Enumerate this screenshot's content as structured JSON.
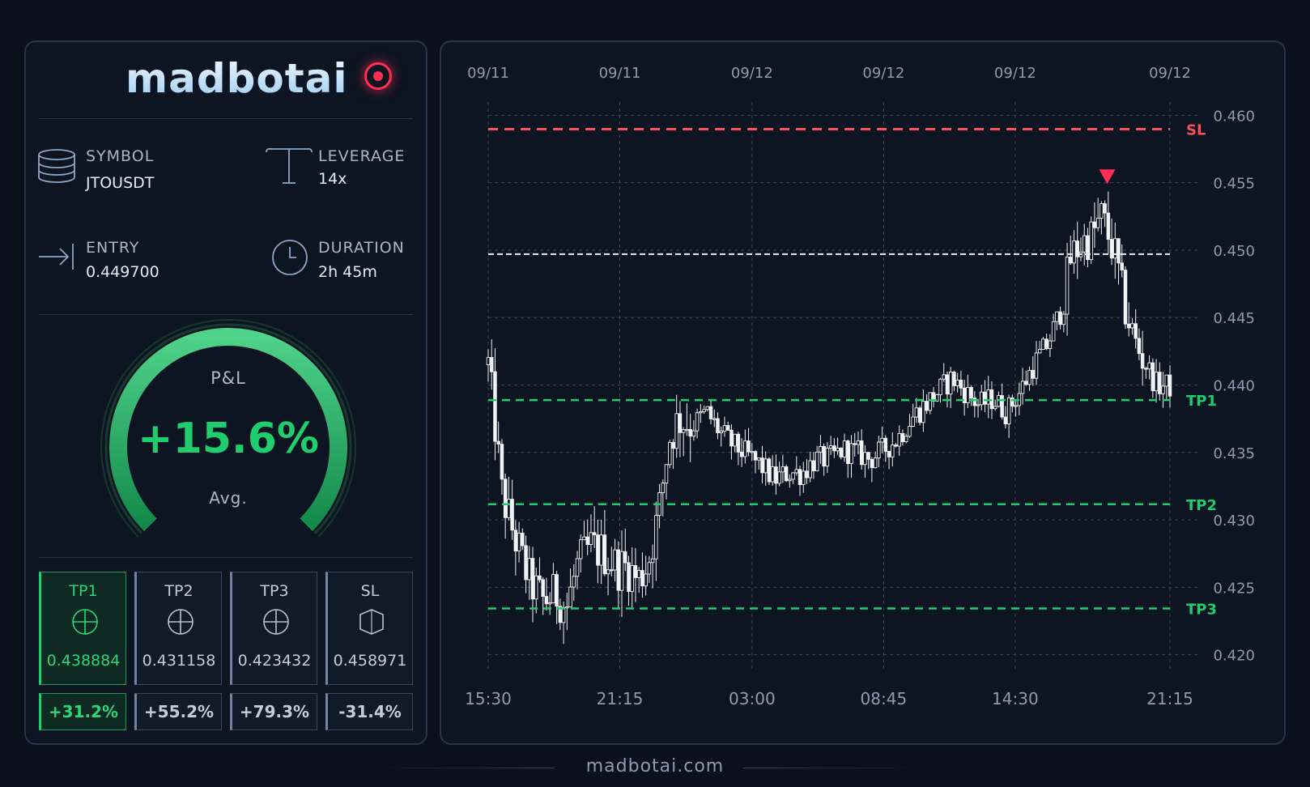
{
  "brand": {
    "logo": "madbotai",
    "website": "madbotai.com"
  },
  "trade": {
    "symbol_label": "SYMBOL",
    "symbol": "JTOUSDT",
    "leverage_label": "LEVERAGE",
    "leverage": "14x",
    "entry_label": "ENTRY",
    "entry": "0.449700",
    "duration_label": "DURATION",
    "duration": "2h 45m"
  },
  "pnl": {
    "title": "P&L",
    "value": "+15.6%",
    "subtitle": "Avg.",
    "fill_fraction": 1.0
  },
  "targets": [
    {
      "name": "TP1",
      "price": "0.438884",
      "pct": "+31.2%",
      "hit": true,
      "icon": "crosshair-icon"
    },
    {
      "name": "TP2",
      "price": "0.431158",
      "pct": "+55.2%",
      "hit": false,
      "icon": "crosshair-icon"
    },
    {
      "name": "TP3",
      "price": "0.423432",
      "pct": "+79.3%",
      "hit": false,
      "icon": "crosshair-icon"
    },
    {
      "name": "SL",
      "price": "0.458971",
      "pct": "-31.4%",
      "hit": false,
      "icon": "shield-icon"
    }
  ],
  "colors": {
    "accent_green": "#1fcd6e",
    "stop_red": "#ff4d5a",
    "entry_line": "#e8ecf2",
    "candle": "#f0f2f5",
    "grid": "#3a4658",
    "axis_text": "#8e9ab0"
  },
  "chart_data": {
    "type": "candlestick",
    "title": "",
    "ylim": [
      0.4195,
      0.4605
    ],
    "yticks": [
      0.42,
      0.425,
      0.43,
      0.435,
      0.44,
      0.445,
      0.45,
      0.455,
      0.46
    ],
    "ytick_labels": [
      "0.420",
      "0.425",
      "0.430",
      "0.435",
      "0.440",
      "0.445",
      "0.450",
      "0.455",
      "0.460"
    ],
    "x_top_labels": [
      "09/11",
      "09/11",
      "09/12",
      "09/12",
      "09/12",
      "09/12"
    ],
    "x_bottom_labels": [
      "15:30",
      "21:15",
      "03:00",
      "08:45",
      "14:30",
      "21:15"
    ],
    "x_tick_fractions": [
      0.0,
      0.193,
      0.387,
      0.58,
      0.773,
      1.0
    ],
    "grid": true,
    "levels": [
      {
        "name": "SL",
        "price": 0.458971,
        "style": "stop"
      },
      {
        "name": "ENTRY",
        "price": 0.4497,
        "style": "entry"
      },
      {
        "name": "TP1",
        "price": 0.438884,
        "style": "target"
      },
      {
        "name": "TP2",
        "price": 0.431158,
        "style": "target"
      },
      {
        "name": "TP3",
        "price": 0.423432,
        "style": "target"
      }
    ],
    "signal_marker": {
      "type": "short-entry",
      "price_at": 0.4555,
      "fraction": 0.908
    },
    "close_path": [
      [
        0.0,
        0.4415
      ],
      [
        0.01,
        0.437
      ],
      [
        0.02,
        0.432
      ],
      [
        0.04,
        0.4285
      ],
      [
        0.06,
        0.4255
      ],
      [
        0.08,
        0.424
      ],
      [
        0.1,
        0.4245
      ],
      [
        0.115,
        0.4235
      ],
      [
        0.13,
        0.4265
      ],
      [
        0.15,
        0.428
      ],
      [
        0.17,
        0.4275
      ],
      [
        0.19,
        0.4265
      ],
      [
        0.205,
        0.4265
      ],
      [
        0.22,
        0.4255
      ],
      [
        0.235,
        0.427
      ],
      [
        0.25,
        0.4305
      ],
      [
        0.265,
        0.436
      ],
      [
        0.28,
        0.4375
      ],
      [
        0.3,
        0.437
      ],
      [
        0.32,
        0.438
      ],
      [
        0.34,
        0.4365
      ],
      [
        0.36,
        0.4355
      ],
      [
        0.38,
        0.4348
      ],
      [
        0.4,
        0.434
      ],
      [
        0.42,
        0.433
      ],
      [
        0.44,
        0.4335
      ],
      [
        0.46,
        0.4335
      ],
      [
        0.48,
        0.4345
      ],
      [
        0.5,
        0.4345
      ],
      [
        0.52,
        0.4352
      ],
      [
        0.54,
        0.435
      ],
      [
        0.56,
        0.4345
      ],
      [
        0.58,
        0.4352
      ],
      [
        0.6,
        0.436
      ],
      [
        0.62,
        0.4375
      ],
      [
        0.64,
        0.4385
      ],
      [
        0.66,
        0.4395
      ],
      [
        0.68,
        0.4405
      ],
      [
        0.7,
        0.4395
      ],
      [
        0.72,
        0.4385
      ],
      [
        0.74,
        0.439
      ],
      [
        0.76,
        0.438
      ],
      [
        0.78,
        0.4395
      ],
      [
        0.8,
        0.4415
      ],
      [
        0.82,
        0.443
      ],
      [
        0.84,
        0.4455
      ],
      [
        0.855,
        0.4495
      ],
      [
        0.87,
        0.4505
      ],
      [
        0.885,
        0.451
      ],
      [
        0.9,
        0.4525
      ],
      [
        0.91,
        0.451
      ],
      [
        0.92,
        0.4495
      ],
      [
        0.935,
        0.4455
      ],
      [
        0.95,
        0.443
      ],
      [
        0.965,
        0.4415
      ],
      [
        0.98,
        0.44
      ],
      [
        1.0,
        0.4399
      ]
    ]
  }
}
